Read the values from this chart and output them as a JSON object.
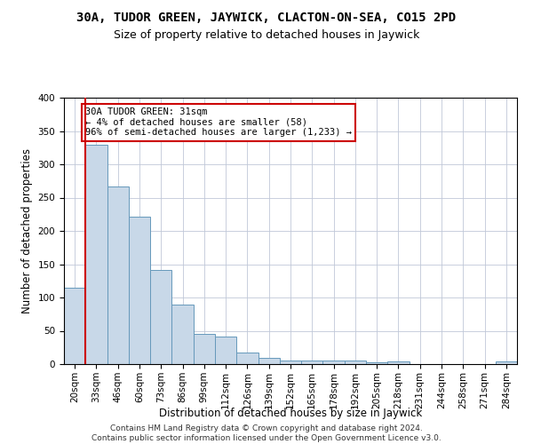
{
  "title": "30A, TUDOR GREEN, JAYWICK, CLACTON-ON-SEA, CO15 2PD",
  "subtitle": "Size of property relative to detached houses in Jaywick",
  "xlabel": "Distribution of detached houses by size in Jaywick",
  "ylabel": "Number of detached properties",
  "categories": [
    "20sqm",
    "33sqm",
    "46sqm",
    "60sqm",
    "73sqm",
    "86sqm",
    "99sqm",
    "112sqm",
    "126sqm",
    "139sqm",
    "152sqm",
    "165sqm",
    "178sqm",
    "192sqm",
    "205sqm",
    "218sqm",
    "231sqm",
    "244sqm",
    "258sqm",
    "271sqm",
    "284sqm"
  ],
  "values": [
    115,
    330,
    267,
    222,
    141,
    90,
    45,
    41,
    18,
    9,
    6,
    5,
    6,
    6,
    3,
    4,
    0,
    0,
    0,
    0,
    4
  ],
  "bar_color": "#c8d8e8",
  "bar_edge_color": "#6699bb",
  "property_line_color": "#cc0000",
  "property_line_x": 0.5,
  "annotation_text": "30A TUDOR GREEN: 31sqm\n← 4% of detached houses are smaller (58)\n96% of semi-detached houses are larger (1,233) →",
  "annotation_box_color": "#ffffff",
  "annotation_box_edge": "#cc0000",
  "ylim": [
    0,
    400
  ],
  "yticks": [
    0,
    50,
    100,
    150,
    200,
    250,
    300,
    350,
    400
  ],
  "footer": "Contains HM Land Registry data © Crown copyright and database right 2024.\nContains public sector information licensed under the Open Government Licence v3.0.",
  "title_fontsize": 10,
  "subtitle_fontsize": 9,
  "axis_label_fontsize": 8.5,
  "tick_fontsize": 7.5,
  "annotation_fontsize": 7.5,
  "footer_fontsize": 6.5,
  "background_color": "#ffffff",
  "grid_color": "#c0c8d8"
}
